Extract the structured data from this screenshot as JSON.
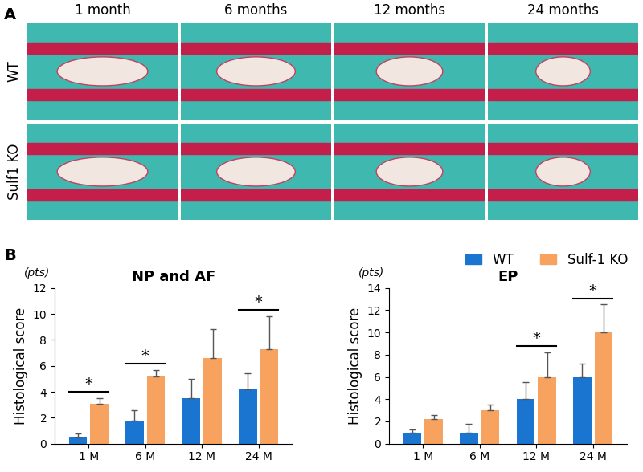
{
  "figure": {
    "panel_a": {
      "label": "A",
      "columns": [
        "1 month",
        "6 months",
        "12 months",
        "24 months"
      ],
      "rows": [
        "WT",
        "Sulf1 KO"
      ]
    },
    "panel_b": {
      "label": "B"
    }
  },
  "chart_data": [
    {
      "type": "bar",
      "title": "NP and AF",
      "ylabel": "Histological score",
      "ylabel_unit": "(pts)",
      "categories": [
        "1 M",
        "6 M",
        "12 M",
        "24 M"
      ],
      "series": [
        {
          "name": "WT",
          "color": "#1a75d1",
          "values": [
            0.5,
            1.8,
            3.5,
            4.2
          ],
          "errors": [
            0.3,
            0.8,
            1.5,
            1.2
          ]
        },
        {
          "name": "Sulf-1 KO",
          "color": "#f7a25e",
          "values": [
            3.1,
            5.2,
            6.6,
            7.3
          ],
          "errors": [
            0.4,
            0.5,
            2.2,
            2.5
          ]
        }
      ],
      "ylim": [
        0,
        12
      ],
      "yticks": [
        0,
        2,
        4,
        6,
        8,
        10,
        12
      ],
      "grid": false,
      "annotations": [
        {
          "category": "1 M",
          "text": "*"
        },
        {
          "category": "6 M",
          "text": "*"
        },
        {
          "category": "24 M",
          "text": "*"
        }
      ]
    },
    {
      "type": "bar",
      "title": "EP",
      "ylabel": "Histological score",
      "ylabel_unit": "(pts)",
      "categories": [
        "1 M",
        "6 M",
        "12 M",
        "24 M"
      ],
      "series": [
        {
          "name": "WT",
          "color": "#1a75d1",
          "values": [
            1.0,
            1.0,
            4.0,
            6.0
          ],
          "errors": [
            0.3,
            0.8,
            1.5,
            1.2
          ]
        },
        {
          "name": "Sulf-1 KO",
          "color": "#f7a25e",
          "values": [
            2.2,
            3.0,
            6.0,
            10.0
          ],
          "errors": [
            0.4,
            0.5,
            2.2,
            2.5
          ]
        }
      ],
      "ylim": [
        0,
        14
      ],
      "yticks": [
        0,
        2,
        4,
        6,
        8,
        10,
        12,
        14
      ],
      "grid": false,
      "legend": "upper right",
      "annotations": [
        {
          "category": "12 M",
          "text": "*"
        },
        {
          "category": "24 M",
          "text": "*"
        }
      ]
    }
  ]
}
